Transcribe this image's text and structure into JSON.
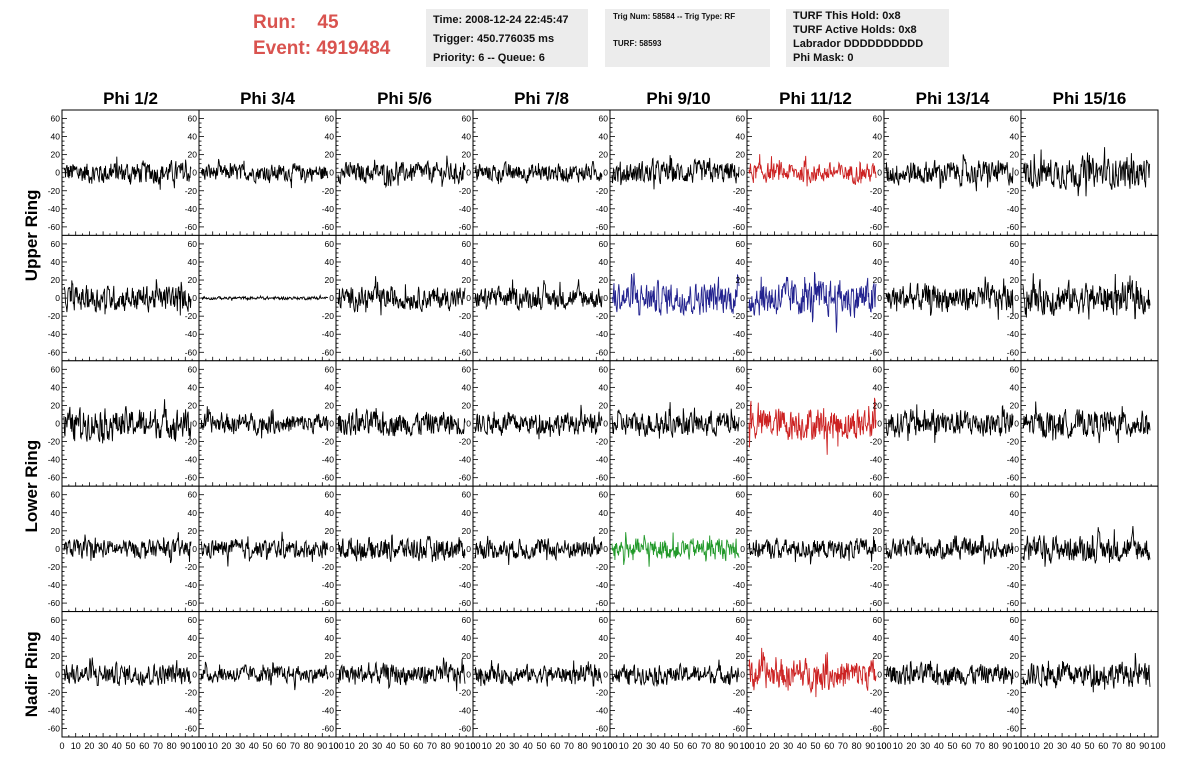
{
  "header": {
    "run_label": "Run:",
    "run_value": "45",
    "event_label": "Event:",
    "event_value": "4919484",
    "time": "Time: 2008-12-24 22:45:47",
    "trigger": "Trigger: 450.776035 ms",
    "priority": "Priority: 6 -- Queue: 6",
    "trig_num": "Trig Num: 58584 -- Trig Type: RF",
    "turf": "TURF: 58593",
    "turf_hold": "TURF This Hold: 0x8",
    "turf_active": "TURF Active Holds: 0x8",
    "labrador": "Labrador DDDDDDDDDD",
    "phi_mask": "Phi Mask: 0"
  },
  "chart_data": {
    "type": "line",
    "title": "",
    "columns": [
      "Phi 1/2",
      "Phi 3/4",
      "Phi 5/6",
      "Phi 7/8",
      "Phi 9/10",
      "Phi 11/12",
      "Phi 13/14",
      "Phi 15/16"
    ],
    "ring_labels": [
      "Upper Ring",
      "Lower Ring",
      "Nadir Ring"
    ],
    "rows": 5,
    "xlim": [
      0,
      100
    ],
    "ylim": [
      -65,
      65
    ],
    "xticks": [
      0,
      10,
      20,
      30,
      40,
      50,
      60,
      70,
      80,
      90,
      100
    ],
    "yticks": [
      -60,
      -40,
      -20,
      0,
      20,
      40,
      60
    ],
    "colors": {
      "normal": "#000000",
      "red": "#cc2222",
      "blue": "#22228f",
      "green": "#22992a"
    },
    "panels": [
      [
        {
          "amp": 15,
          "color": "normal"
        },
        {
          "amp": 11,
          "color": "normal"
        },
        {
          "amp": 13,
          "color": "normal"
        },
        {
          "amp": 12,
          "color": "normal"
        },
        {
          "amp": 15,
          "color": "normal"
        },
        {
          "amp": 13,
          "color": "red"
        },
        {
          "amp": 16,
          "color": "normal"
        },
        {
          "amp": 20,
          "color": "normal"
        }
      ],
      [
        {
          "amp": 17,
          "color": "normal"
        },
        {
          "amp": 2,
          "color": "normal"
        },
        {
          "amp": 15,
          "color": "normal"
        },
        {
          "amp": 14,
          "color": "normal"
        },
        {
          "amp": 21,
          "color": "blue"
        },
        {
          "amp": 24,
          "color": "blue"
        },
        {
          "amp": 18,
          "color": "normal"
        },
        {
          "amp": 21,
          "color": "normal"
        }
      ],
      [
        {
          "amp": 20,
          "color": "normal"
        },
        {
          "amp": 13,
          "color": "normal"
        },
        {
          "amp": 16,
          "color": "normal"
        },
        {
          "amp": 14,
          "color": "normal"
        },
        {
          "amp": 16,
          "color": "normal"
        },
        {
          "amp": 22,
          "color": "red"
        },
        {
          "amp": 18,
          "color": "normal"
        },
        {
          "amp": 17,
          "color": "normal"
        }
      ],
      [
        {
          "amp": 12,
          "color": "normal"
        },
        {
          "amp": 12,
          "color": "normal"
        },
        {
          "amp": 15,
          "color": "normal"
        },
        {
          "amp": 13,
          "color": "normal"
        },
        {
          "amp": 14,
          "color": "green"
        },
        {
          "amp": 13,
          "color": "normal"
        },
        {
          "amp": 13,
          "color": "normal"
        },
        {
          "amp": 17,
          "color": "normal"
        }
      ],
      [
        {
          "amp": 14,
          "color": "normal"
        },
        {
          "amp": 11,
          "color": "normal"
        },
        {
          "amp": 14,
          "color": "normal"
        },
        {
          "amp": 12,
          "color": "normal"
        },
        {
          "amp": 12,
          "color": "normal"
        },
        {
          "amp": 20,
          "color": "red"
        },
        {
          "amp": 14,
          "color": "normal"
        },
        {
          "amp": 16,
          "color": "normal"
        }
      ]
    ]
  }
}
